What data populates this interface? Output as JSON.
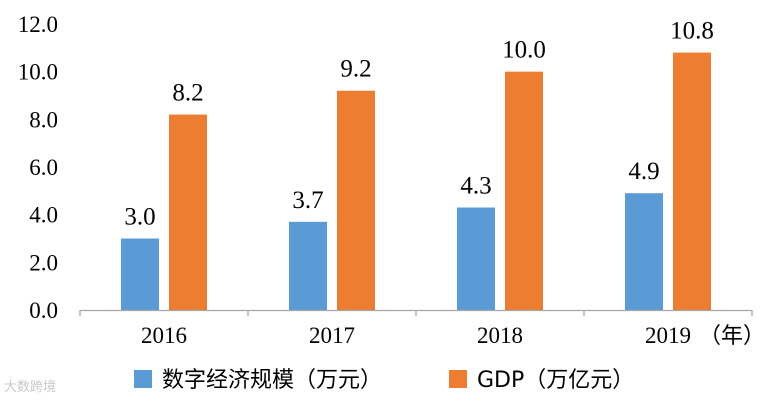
{
  "chart_data": {
    "type": "bar",
    "categories": [
      "2016",
      "2017",
      "2018",
      "2019"
    ],
    "x_unit_label": "（年）",
    "ylim": [
      0,
      12
    ],
    "yticks": [
      "0.0",
      "2.0",
      "4.0",
      "6.0",
      "8.0",
      "10.0",
      "12.0"
    ],
    "grid": false,
    "legend_position": "bottom",
    "series": [
      {
        "name": "数字经济规模（万元）",
        "values": [
          3.0,
          3.7,
          4.3,
          4.9
        ],
        "labels": [
          "3.0",
          "3.7",
          "4.3",
          "4.9"
        ],
        "color": "#5b9bd5"
      },
      {
        "name": "GDP（万亿元）",
        "values": [
          8.2,
          9.2,
          10.0,
          10.8
        ],
        "labels": [
          "8.2",
          "9.2",
          "10.0",
          "10.8"
        ],
        "color": "#ed7d31"
      }
    ]
  },
  "watermark": "大数跨境"
}
